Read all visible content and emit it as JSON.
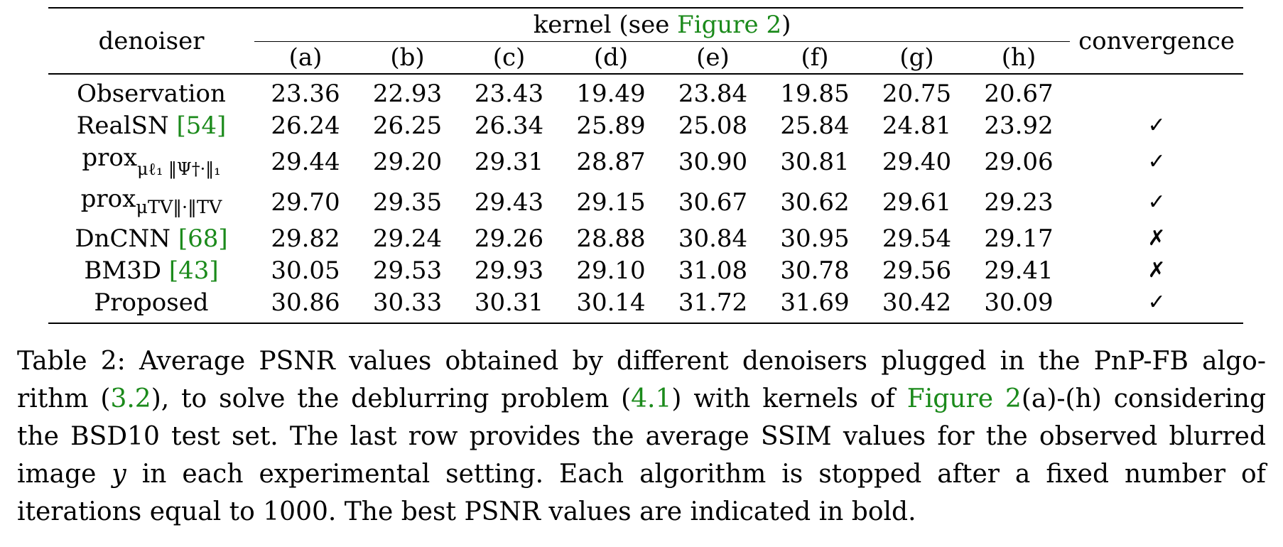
{
  "table": {
    "header": {
      "denoiser": "denoiser",
      "kernel_prefix": "kernel (see ",
      "kernel_link": "Figure 2",
      "kernel_suffix": ")",
      "convergence": "convergence",
      "kernels": [
        "(a)",
        "(b)",
        "(c)",
        "(d)",
        "(e)",
        "(f)",
        "(g)",
        "(h)"
      ]
    },
    "rows": [
      {
        "name": "Observation",
        "ref": "",
        "values": [
          "23.36",
          "22.93",
          "23.43",
          "19.49",
          "23.84",
          "19.85",
          "20.75",
          "20.67"
        ],
        "convergence": ""
      },
      {
        "name": "RealSN ",
        "ref": "[54]",
        "values": [
          "26.24",
          "26.25",
          "26.34",
          "25.89",
          "25.08",
          "25.84",
          "24.81",
          "23.92"
        ],
        "convergence": "✓"
      },
      {
        "name": "prox",
        "sub": "μℓ₁ ‖Ψ†·‖₁",
        "values": [
          "29.44",
          "29.20",
          "29.31",
          "28.87",
          "30.90",
          "30.81",
          "29.40",
          "29.06"
        ],
        "convergence": "✓"
      },
      {
        "name": "prox",
        "sub": "μTV‖·‖TV",
        "values": [
          "29.70",
          "29.35",
          "29.43",
          "29.15",
          "30.67",
          "30.62",
          "29.61",
          "29.23"
        ],
        "convergence": "✓"
      },
      {
        "name": "DnCNN ",
        "ref": "[68]",
        "values": [
          "29.82",
          "29.24",
          "29.26",
          "28.88",
          "30.84",
          "30.95",
          "29.54",
          "29.17"
        ],
        "convergence": "✗"
      },
      {
        "name": "BM3D ",
        "ref": "[43]",
        "values": [
          "30.05",
          "29.53",
          "29.93",
          "29.10",
          "31.08",
          "30.78",
          "29.56",
          "29.41"
        ],
        "convergence": "✗"
      },
      {
        "name": "Proposed",
        "ref": "",
        "values": [
          "30.86",
          "30.33",
          "30.31",
          "30.14",
          "31.72",
          "31.69",
          "30.42",
          "30.09"
        ],
        "convergence": "✓",
        "bold": true
      }
    ]
  },
  "caption": {
    "line1": "Table 2:  Average PSNR values obtained by different denoisers plugged in the PnP-FB algo-",
    "line2_a": "rithm (",
    "line2_ref1": "3.2",
    "line2_b": "), to solve the deblurring problem (",
    "line2_ref2": "4.1",
    "line2_c": ") with kernels of ",
    "line2_ref3": "Figure 2",
    "line2_d": "(a)-(h) considering",
    "line3": "the BSD10 test set.  The last row provides the average SSIM values for the observed blurred",
    "line4_a": "image ",
    "line4_var": "y",
    "line4_b": " in each experimental setting.  Each algorithm is stopped after a fixed number of",
    "line5": "iterations equal to 1000. The best PSNR values are indicated in bold."
  },
  "colors": {
    "link": "#1b8a1b",
    "text": "#000000"
  }
}
